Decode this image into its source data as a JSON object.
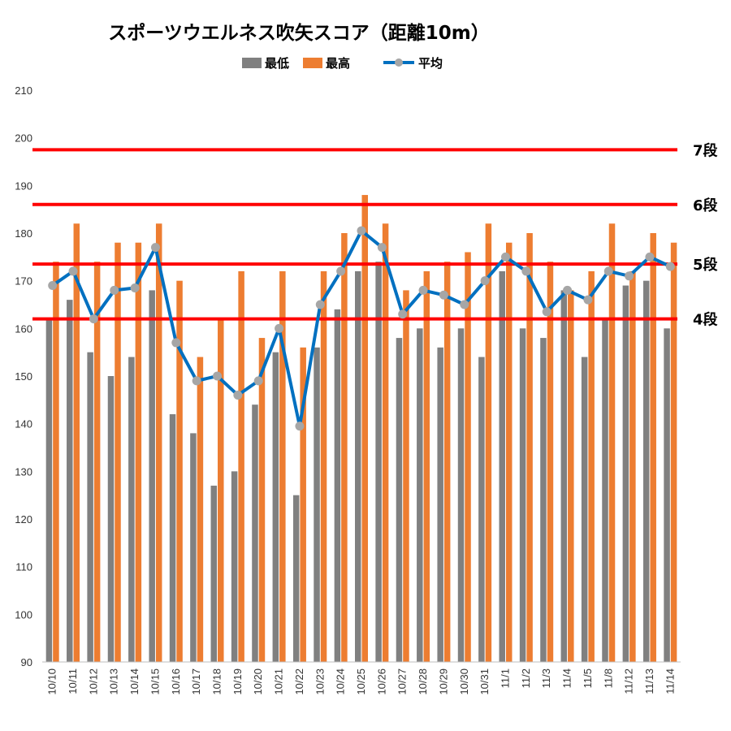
{
  "chart_data": {
    "type": "bar",
    "title": "スポーツウエルネス吹矢スコア（距離10m）",
    "categories": [
      "10/10",
      "10/11",
      "10/12",
      "10/13",
      "10/14",
      "10/15",
      "10/16",
      "10/17",
      "10/18",
      "10/19",
      "10/20",
      "10/21",
      "10/22",
      "10/23",
      "10/24",
      "10/25",
      "10/26",
      "10/27",
      "10/28",
      "10/29",
      "10/30",
      "10/31",
      "11/1",
      "11/2",
      "11/3",
      "11/4",
      "11/5",
      "11/8",
      "11/12",
      "11/13",
      "11/14"
    ],
    "series": [
      {
        "name": "最低",
        "type": "bar",
        "color": "#808080",
        "values": [
          162,
          166,
          155,
          150,
          154,
          168,
          142,
          138,
          127,
          130,
          144,
          155,
          125,
          156,
          164,
          172,
          174,
          158,
          160,
          156,
          160,
          154,
          172,
          160,
          158,
          168,
          154,
          162,
          169,
          170,
          160
        ]
      },
      {
        "name": "最高",
        "type": "bar",
        "color": "#ED7D31",
        "values": [
          174,
          182,
          174,
          178,
          178,
          182,
          170,
          154,
          162,
          172,
          158,
          172,
          156,
          172,
          180,
          188,
          182,
          168,
          172,
          174,
          176,
          182,
          178,
          180,
          174,
          168,
          172,
          182,
          172,
          180,
          178
        ]
      },
      {
        "name": "平均",
        "type": "line",
        "color": "#0070C0",
        "marker_color": "#A6A6A6",
        "values": [
          169,
          172,
          162,
          168,
          168.5,
          177,
          157,
          149,
          150,
          146,
          149,
          160,
          139.5,
          165,
          172,
          180.5,
          177,
          163,
          168,
          167,
          165,
          170,
          175,
          172,
          163.5,
          168,
          166,
          172,
          171,
          175,
          173
        ]
      }
    ],
    "reference_lines": [
      {
        "label": "7段",
        "value": 197.5,
        "color": "#FF0000"
      },
      {
        "label": "6段",
        "value": 186,
        "color": "#FF0000"
      },
      {
        "label": "5段",
        "value": 173.5,
        "color": "#FF0000"
      },
      {
        "label": "4段",
        "value": 162,
        "color": "#FF0000"
      }
    ],
    "ylim": [
      90,
      210
    ],
    "yticks": [
      90,
      100,
      110,
      120,
      130,
      140,
      150,
      160,
      170,
      180,
      190,
      200,
      210
    ],
    "grid": false,
    "legend_position": "top"
  }
}
